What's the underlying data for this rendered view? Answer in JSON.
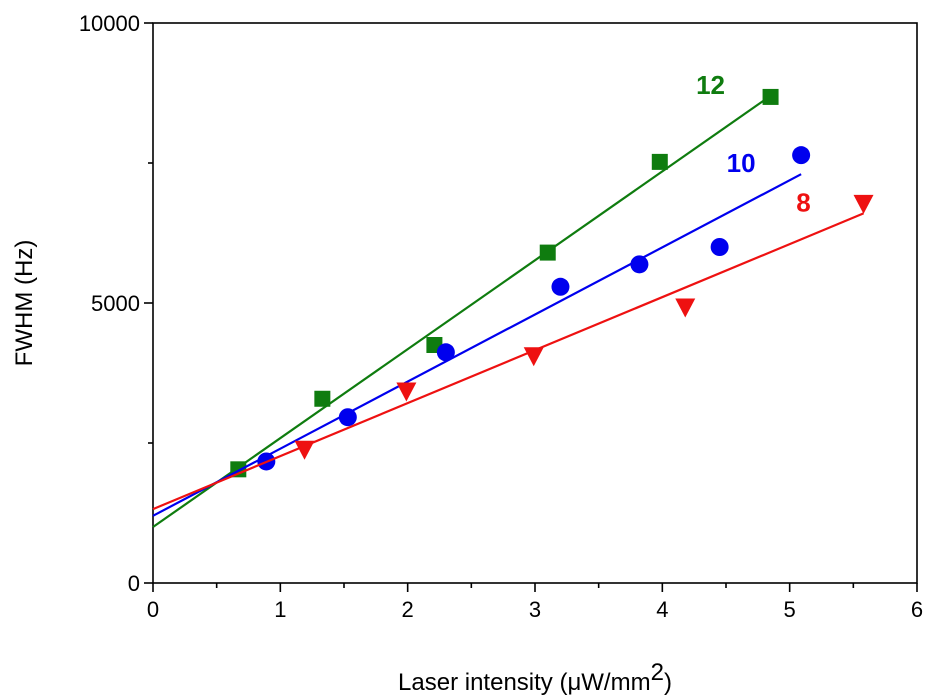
{
  "chart_data": {
    "type": "scatter",
    "xlabel_parts": [
      "Laser intensity (μW/mm",
      "2",
      ")"
    ],
    "ylabel": "FWHM (Hz)",
    "xlim": [
      0,
      6
    ],
    "xticks": [
      0,
      1,
      2,
      3,
      4,
      5,
      6
    ],
    "xminorticks": [
      0.5,
      1.5,
      2.5,
      3.5,
      4.5,
      5.5
    ],
    "ylim": [
      0,
      10000
    ],
    "yticks": [
      0,
      5000,
      10000
    ],
    "yminorticks": [
      2500,
      7500
    ],
    "series": [
      {
        "name": "12",
        "color": "#0f7c0f",
        "marker": "square",
        "x": [
          0.67,
          1.33,
          2.21,
          3.1,
          3.98,
          4.85
        ],
        "values": [
          2030,
          3290,
          4250,
          5900,
          7520,
          8680
        ],
        "fit_x": [
          0,
          4.85
        ],
        "fit_y": [
          1000,
          8700
        ]
      },
      {
        "name": "10",
        "color": "#0000ee",
        "marker": "circle",
        "x": [
          0.89,
          1.53,
          2.3,
          3.2,
          3.82,
          4.45,
          5.09
        ],
        "values": [
          2170,
          2960,
          4120,
          5290,
          5690,
          6000,
          7640
        ],
        "fit_x": [
          0,
          5.09
        ],
        "fit_y": [
          1200,
          7300
        ]
      },
      {
        "name": "8",
        "color": "#ee1111",
        "marker": "triangle-down",
        "x": [
          1.19,
          1.99,
          2.99,
          4.18,
          5.58
        ],
        "values": [
          2380,
          3420,
          4050,
          4920,
          6770
        ],
        "fit_x": [
          0,
          5.58
        ],
        "fit_y": [
          1320,
          6600
        ]
      }
    ]
  }
}
